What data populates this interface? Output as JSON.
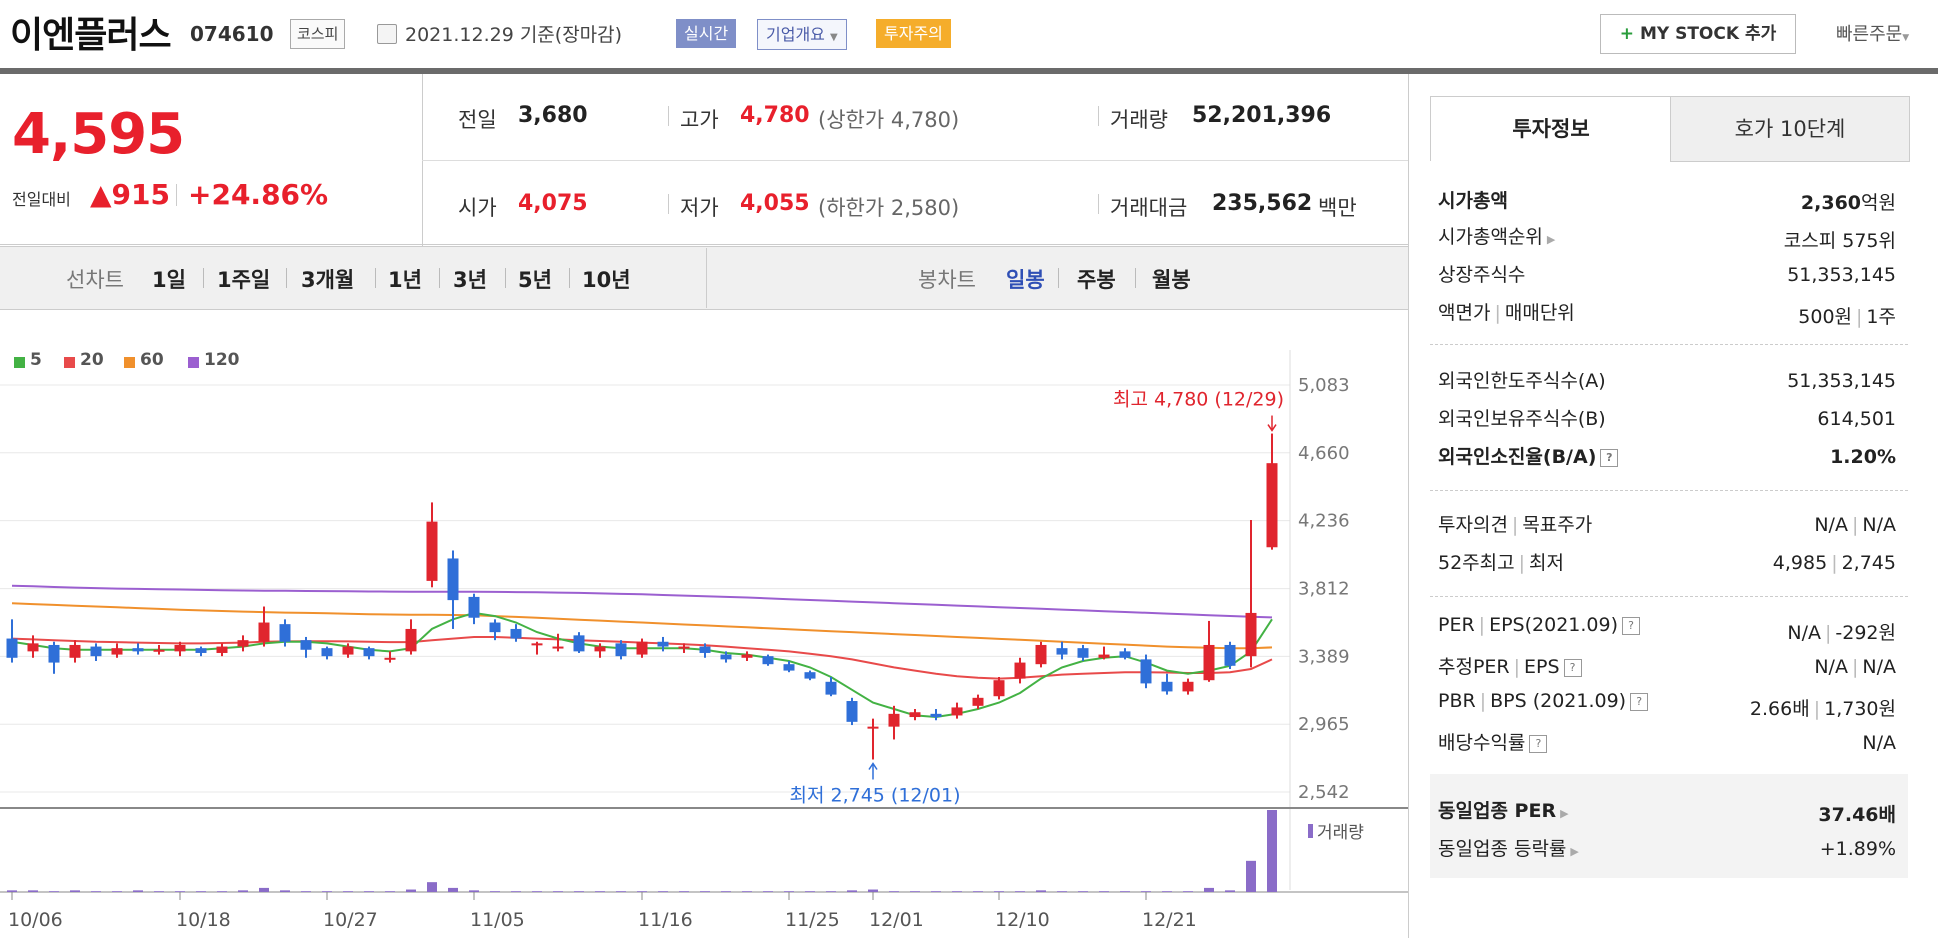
{
  "header": {
    "name": "이엔플러스",
    "code": "074610",
    "market": "코스피",
    "date_text": "2021.12.29  기준(장마감)",
    "realtime": "실시간",
    "company_info": "기업개요",
    "warning": "투자주의",
    "mystock_label": "MY STOCK 추가",
    "quick_order": "빠른주문"
  },
  "price": {
    "current": "4,595",
    "change_label": "전일대비",
    "change_value": "▲915",
    "change_pct": "+24.86%"
  },
  "quote": {
    "prev_close_label": "전일",
    "prev_close": "3,680",
    "high_label": "고가",
    "high": "4,780",
    "upper_limit": "(상한가 4,780)",
    "volume_label": "거래량",
    "volume": "52,201,396",
    "open_label": "시가",
    "open": "4,075",
    "low_label": "저가",
    "low": "4,055",
    "lower_limit": "(하한가 2,580)",
    "amount_label": "거래대금",
    "amount": "235,562",
    "amount_unit": "백만"
  },
  "period_bar": {
    "line_label": "선차트",
    "line_items": [
      "1일",
      "1주일",
      "3개월",
      "1년",
      "3년",
      "5년",
      "10년"
    ],
    "candle_label": "봉차트",
    "candle_items": [
      "일봉",
      "주봉",
      "월봉"
    ],
    "active_candle": "일봉"
  },
  "chart_data": {
    "type": "candlestick",
    "legend": [
      {
        "name": "5",
        "color": "#43b244"
      },
      {
        "name": "20",
        "color": "#e84a4a"
      },
      {
        "name": "60",
        "color": "#f0902c"
      },
      {
        "name": "120",
        "color": "#9b5fd0"
      }
    ],
    "y_ticks": [
      5083,
      4660,
      4236,
      3812,
      3389,
      2965,
      2542
    ],
    "ylim": [
      2542,
      5083
    ],
    "x_ticks": [
      "10/06",
      "10/18",
      "10/27",
      "11/05",
      "11/16",
      "11/25",
      "12/01",
      "12/10",
      "12/21"
    ],
    "high_annotation": "최고 4,780 (12/29)",
    "low_annotation": "최저 2,745 (12/01)",
    "volume_label": "거래량",
    "candles": [
      [
        3500,
        3380,
        3620,
        3350
      ],
      [
        3420,
        3470,
        3520,
        3380
      ],
      [
        3460,
        3350,
        3480,
        3280
      ],
      [
        3380,
        3460,
        3490,
        3350
      ],
      [
        3450,
        3390,
        3470,
        3360
      ],
      [
        3400,
        3440,
        3470,
        3380
      ],
      [
        3440,
        3420,
        3470,
        3400
      ],
      [
        3430,
        3430,
        3460,
        3400
      ],
      [
        3420,
        3460,
        3480,
        3390
      ],
      [
        3440,
        3410,
        3450,
        3390
      ],
      [
        3410,
        3450,
        3470,
        3390
      ],
      [
        3450,
        3490,
        3520,
        3420
      ],
      [
        3480,
        3600,
        3700,
        3450
      ],
      [
        3590,
        3480,
        3620,
        3450
      ],
      [
        3490,
        3430,
        3510,
        3380
      ],
      [
        3440,
        3390,
        3450,
        3370
      ],
      [
        3400,
        3450,
        3470,
        3380
      ],
      [
        3440,
        3390,
        3450,
        3370
      ],
      [
        3380,
        3380,
        3420,
        3350
      ],
      [
        3420,
        3560,
        3620,
        3400
      ],
      [
        3860,
        4230,
        4350,
        3820
      ],
      [
        4000,
        3740,
        4050,
        3560
      ],
      [
        3760,
        3630,
        3780,
        3590
      ],
      [
        3600,
        3540,
        3620,
        3490
      ],
      [
        3560,
        3500,
        3590,
        3480
      ],
      [
        3460,
        3470,
        3480,
        3400
      ],
      [
        3450,
        3450,
        3530,
        3420
      ],
      [
        3520,
        3420,
        3540,
        3410
      ],
      [
        3420,
        3450,
        3470,
        3380
      ],
      [
        3470,
        3390,
        3490,
        3370
      ],
      [
        3400,
        3480,
        3500,
        3380
      ],
      [
        3480,
        3450,
        3510,
        3420
      ],
      [
        3440,
        3450,
        3470,
        3410
      ],
      [
        3450,
        3410,
        3470,
        3380
      ],
      [
        3400,
        3370,
        3420,
        3350
      ],
      [
        3380,
        3400,
        3420,
        3360
      ],
      [
        3390,
        3340,
        3400,
        3330
      ],
      [
        3340,
        3300,
        3360,
        3290
      ],
      [
        3290,
        3250,
        3300,
        3240
      ],
      [
        3230,
        3150,
        3260,
        3140
      ],
      [
        3110,
        2980,
        3130,
        2960
      ],
      [
        2940,
        2950,
        3000,
        2745
      ],
      [
        2950,
        3030,
        3080,
        2870
      ],
      [
        3010,
        3040,
        3060,
        2990
      ],
      [
        3030,
        3010,
        3060,
        2990
      ],
      [
        3020,
        3070,
        3100,
        3000
      ],
      [
        3080,
        3130,
        3150,
        3060
      ],
      [
        3140,
        3240,
        3260,
        3120
      ],
      [
        3250,
        3350,
        3380,
        3220
      ],
      [
        3340,
        3460,
        3480,
        3320
      ],
      [
        3440,
        3400,
        3480,
        3370
      ],
      [
        3440,
        3380,
        3460,
        3360
      ],
      [
        3380,
        3400,
        3450,
        3370
      ],
      [
        3420,
        3380,
        3440,
        3370
      ],
      [
        3370,
        3220,
        3400,
        3190
      ],
      [
        3230,
        3170,
        3280,
        3150
      ],
      [
        3170,
        3230,
        3250,
        3150
      ],
      [
        3240,
        3460,
        3610,
        3230
      ],
      [
        3460,
        3330,
        3480,
        3310
      ],
      [
        3390,
        3660,
        4240,
        3320
      ],
      [
        4070,
        4595,
        4780,
        4055
      ]
    ],
    "ma": {
      "5": [
        3480,
        3460,
        3440,
        3430,
        3430,
        3430,
        3430,
        3430,
        3430,
        3430,
        3440,
        3450,
        3470,
        3480,
        3480,
        3470,
        3450,
        3430,
        3420,
        3440,
        3560,
        3620,
        3660,
        3640,
        3600,
        3540,
        3500,
        3470,
        3450,
        3440,
        3440,
        3440,
        3440,
        3430,
        3410,
        3400,
        3380,
        3360,
        3320,
        3260,
        3180,
        3100,
        3060,
        3020,
        3010,
        3030,
        3060,
        3100,
        3160,
        3250,
        3320,
        3360,
        3380,
        3390,
        3350,
        3300,
        3280,
        3300,
        3330,
        3420,
        3620
      ],
      "20": [
        3500,
        3495,
        3490,
        3485,
        3480,
        3478,
        3475,
        3472,
        3470,
        3470,
        3472,
        3475,
        3480,
        3482,
        3483,
        3483,
        3482,
        3480,
        3478,
        3478,
        3490,
        3500,
        3510,
        3510,
        3505,
        3500,
        3495,
        3490,
        3485,
        3480,
        3475,
        3470,
        3465,
        3458,
        3450,
        3440,
        3430,
        3420,
        3405,
        3390,
        3370,
        3345,
        3320,
        3300,
        3280,
        3265,
        3255,
        3250,
        3255,
        3265,
        3275,
        3280,
        3285,
        3290,
        3290,
        3288,
        3285,
        3285,
        3290,
        3310,
        3370
      ],
      "60": [
        3720,
        3715,
        3710,
        3705,
        3700,
        3695,
        3690,
        3685,
        3680,
        3676,
        3672,
        3668,
        3665,
        3662,
        3660,
        3658,
        3655,
        3652,
        3650,
        3648,
        3648,
        3647,
        3645,
        3640,
        3635,
        3630,
        3624,
        3618,
        3612,
        3606,
        3600,
        3594,
        3588,
        3582,
        3576,
        3570,
        3564,
        3558,
        3552,
        3546,
        3540,
        3534,
        3528,
        3522,
        3516,
        3510,
        3504,
        3498,
        3492,
        3486,
        3480,
        3474,
        3468,
        3462,
        3456,
        3450,
        3446,
        3442,
        3440,
        3440,
        3445
      ],
      "120": [
        3830,
        3826,
        3822,
        3818,
        3815,
        3812,
        3810,
        3808,
        3806,
        3804,
        3802,
        3800,
        3799,
        3798,
        3797,
        3796,
        3795,
        3794,
        3793,
        3792,
        3792,
        3792,
        3792,
        3791,
        3790,
        3789,
        3787,
        3785,
        3782,
        3779,
        3776,
        3772,
        3768,
        3764,
        3760,
        3756,
        3751,
        3746,
        3741,
        3736,
        3731,
        3726,
        3721,
        3716,
        3711,
        3706,
        3701,
        3696,
        3691,
        3686,
        3681,
        3676,
        3671,
        3666,
        3661,
        3656,
        3651,
        3646,
        3641,
        3636,
        3632
      ]
    },
    "volume": [
      0.02,
      0.02,
      0.01,
      0.02,
      0.01,
      0.01,
      0.02,
      0.01,
      0.01,
      0.01,
      0.01,
      0.02,
      0.05,
      0.02,
      0.01,
      0.01,
      0.01,
      0.01,
      0.01,
      0.03,
      0.12,
      0.05,
      0.02,
      0.01,
      0.01,
      0.01,
      0.01,
      0.01,
      0.01,
      0.01,
      0.01,
      0.01,
      0.01,
      0.01,
      0.01,
      0.01,
      0.01,
      0.01,
      0.01,
      0.01,
      0.02,
      0.03,
      0.01,
      0.01,
      0.01,
      0.01,
      0.01,
      0.01,
      0.01,
      0.02,
      0.01,
      0.01,
      0.01,
      0.01,
      0.01,
      0.01,
      0.01,
      0.05,
      0.02,
      0.38,
      1.0
    ]
  },
  "invest_info": {
    "tab_info": "투자정보",
    "tab_orderbook": "호가 10단계",
    "market_cap_label": "시가총액",
    "market_cap": "2,360",
    "market_cap_unit": "억원",
    "cap_rank_label": "시가총액순위",
    "cap_rank": "코스피 575위",
    "shares_label": "상장주식수",
    "shares": "51,353,145",
    "par_label": "액면가",
    "unit_label": "매매단위",
    "par": "500원",
    "unit": "1주",
    "foreign_limit_label": "외국인한도주식수(A)",
    "foreign_limit": "51,353,145",
    "foreign_hold_label": "외국인보유주식수(B)",
    "foreign_hold": "614,501",
    "foreign_ratio_label": "외국인소진율(B/A)",
    "foreign_ratio": "1.20%",
    "opinion_label": "투자의견",
    "target_label": "목표주가",
    "opinion": "N/A",
    "target": "N/A",
    "w52_label": "52주최고",
    "w52_low_label": "최저",
    "w52_high": "4,985",
    "w52_low": "2,745",
    "per_label": "PER",
    "eps_label": "EPS(2021.09)",
    "per": "N/A",
    "eps": "-292원",
    "est_per_label": "추정PER",
    "est_eps_label": "EPS",
    "est_per": "N/A",
    "est_eps": "N/A",
    "pbr_label": "PBR",
    "bps_label": "BPS (2021.09)",
    "pbr": "2.66배",
    "bps": "1,730원",
    "div_label": "배당수익률",
    "div": "N/A",
    "ind_per_label": "동일업종 PER",
    "ind_per": "37.46배",
    "ind_chg_label": "동일업종 등락률",
    "ind_chg": "+1.89%"
  }
}
